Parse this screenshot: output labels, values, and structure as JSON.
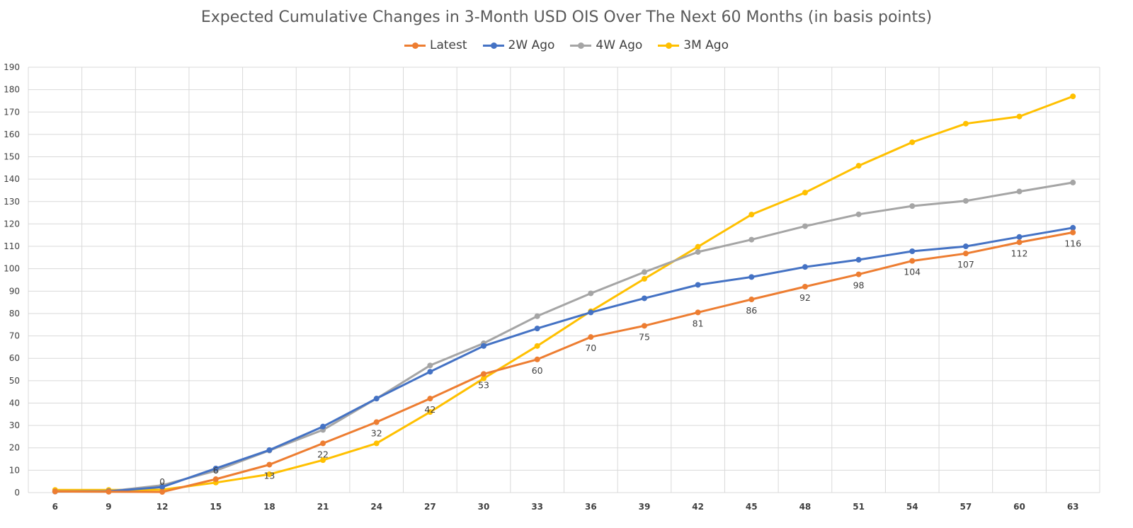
{
  "chart_data": {
    "type": "line",
    "title": "Expected Cumulative Changes in 3-Month USD OIS Over The Next 60 Months (in basis points)",
    "xlabel": "",
    "ylabel": "",
    "x": [
      6,
      9,
      12,
      15,
      18,
      21,
      24,
      27,
      30,
      33,
      36,
      39,
      42,
      45,
      48,
      51,
      54,
      57,
      60,
      63
    ],
    "ylim": [
      0,
      190
    ],
    "yticks": [
      0,
      10,
      20,
      30,
      40,
      50,
      60,
      70,
      80,
      90,
      100,
      110,
      120,
      130,
      140,
      150,
      160,
      170,
      180,
      190
    ],
    "grid": true,
    "legend": "top",
    "series": [
      {
        "name": "Latest",
        "color": "#ED7D31",
        "values": [
          0.5,
          0.4,
          0.3,
          6,
          12.5,
          22,
          31.5,
          42,
          53,
          59.5,
          69.5,
          74.5,
          80.5,
          86.3,
          92,
          97.5,
          103.5,
          106.8,
          111.8,
          116.2
        ],
        "data_labels": [
          "",
          "",
          "0",
          "6",
          "13",
          "22",
          "32",
          "42",
          "53",
          "60",
          "70",
          "75",
          "81",
          "86",
          "92",
          "98",
          "104",
          "107",
          "112",
          "116"
        ]
      },
      {
        "name": "2W Ago",
        "color": "#4472C4",
        "values": [
          0.5,
          0.6,
          2.5,
          10.8,
          19,
          29.5,
          42,
          54,
          65.5,
          73.3,
          80.5,
          86.8,
          92.8,
          96.3,
          100.8,
          104,
          107.8,
          110,
          114.2,
          118.3
        ]
      },
      {
        "name": "4W Ago",
        "color": "#A5A5A5",
        "values": [
          0.5,
          0.6,
          3.3,
          9.8,
          18.8,
          28,
          42,
          56.8,
          66.7,
          78.8,
          89,
          98.5,
          107.5,
          113,
          119,
          124.3,
          128,
          130.3,
          134.5,
          138.5
        ]
      },
      {
        "name": "3M Ago",
        "color": "#FFC000",
        "values": [
          1.2,
          1.2,
          1.3,
          4.5,
          8.2,
          14.5,
          22,
          36,
          51,
          65.5,
          81,
          95.5,
          109.8,
          124.2,
          134,
          146,
          156.5,
          164.8,
          168,
          177
        ]
      }
    ]
  }
}
